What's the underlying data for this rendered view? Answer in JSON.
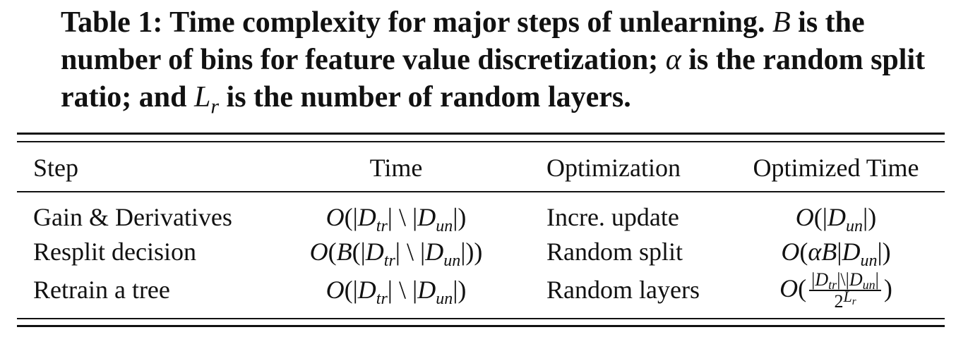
{
  "caption": {
    "label": "Table 1:",
    "text_1": " Time complexity for major steps of unlearning. ",
    "var_B": "B",
    "text_2": " is the number of bins for feature value discretization; ",
    "var_alpha": "α",
    "text_3": " is the random split ratio; and ",
    "var_L": "L",
    "var_L_sub": "r",
    "text_4": " is the number of random layers."
  },
  "table": {
    "headers": [
      "Step",
      "Time",
      "Optimization",
      "Optimized Time"
    ],
    "rows": [
      {
        "step": "Gain & Derivatives",
        "time": "O(|D_tr| \\ |D_un|)",
        "optimization": "Incre. update",
        "optimized_time": "O(|D_un|)"
      },
      {
        "step": "Resplit decision",
        "time": "O(B(|D_tr| \\ |D_un|))",
        "optimization": "Random split",
        "optimized_time": "O(αB|D_un|)"
      },
      {
        "step": "Retrain a tree",
        "time": "O(|D_tr| \\ |D_un|)",
        "optimization": "Random layers",
        "optimized_time": "O(|D_tr| \\ |D_un| / 2^(L_r))"
      }
    ]
  }
}
